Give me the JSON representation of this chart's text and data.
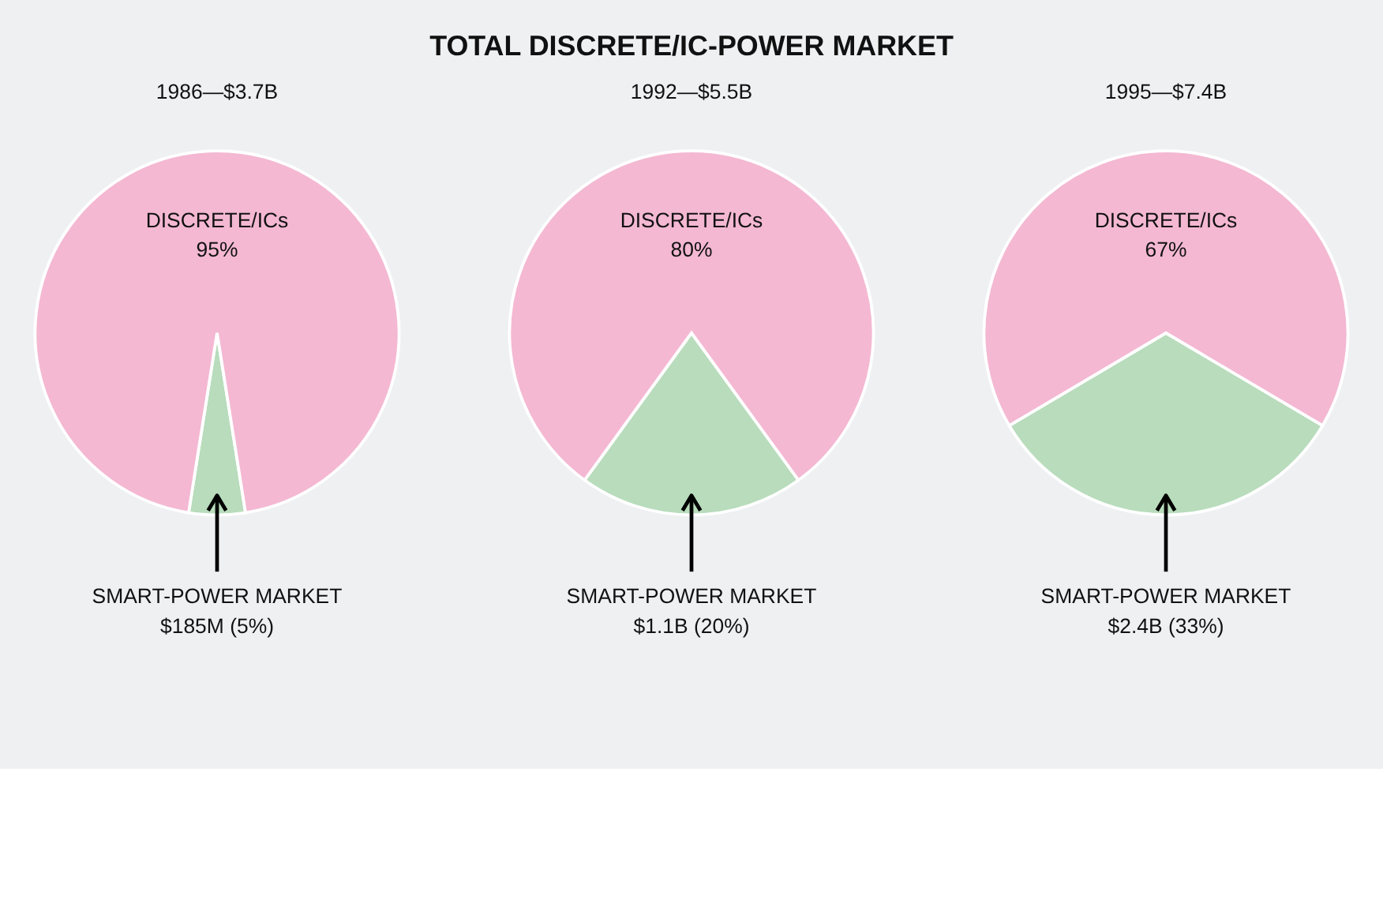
{
  "chart_data": [
    {
      "type": "pie",
      "subtitle": "1986—$3.7B",
      "categories": [
        "DISCRETE/ICs",
        "SMART-POWER MARKET"
      ],
      "values": [
        95,
        5
      ],
      "colors": [
        "#f4b8d2",
        "#b8dcbc"
      ],
      "value_labels": [
        "95%",
        "$185M (5%)"
      ]
    },
    {
      "type": "pie",
      "title": "TOTAL DISCRETE/IC-POWER MARKET",
      "subtitle": "1992—$5.5B",
      "categories": [
        "DISCRETE/ICs",
        "SMART-POWER MARKET"
      ],
      "values": [
        80,
        20
      ],
      "colors": [
        "#f4b8d2",
        "#b8dcbc"
      ],
      "value_labels": [
        "80%",
        "$1.1B (20%)"
      ]
    },
    {
      "type": "pie",
      "subtitle": "1995—$7.4B",
      "categories": [
        "DISCRETE/ICs",
        "SMART-POWER MARKET"
      ],
      "values": [
        67,
        33
      ],
      "colors": [
        "#f4b8d2",
        "#b8dcbc"
      ],
      "value_labels": [
        "67%",
        "$2.4B (33%)"
      ]
    }
  ]
}
